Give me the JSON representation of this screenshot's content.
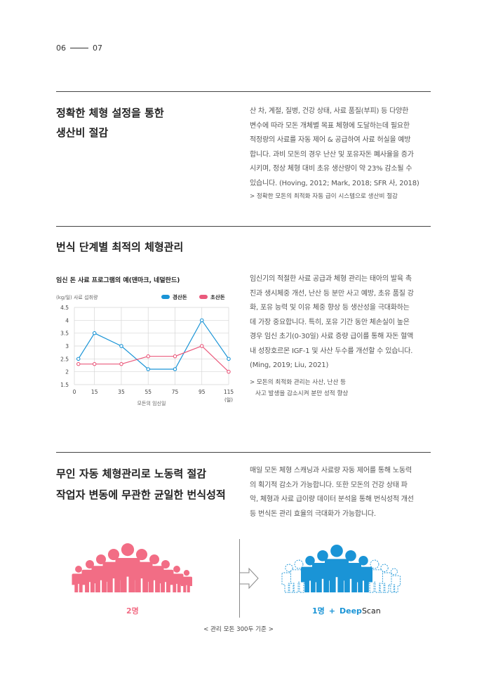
{
  "page": {
    "left_num": "06",
    "right_num": "07"
  },
  "section1": {
    "heading_line1": "정확한 체형 설정을 통한",
    "heading_line2": "생산비 절감",
    "para_lines": [
      "산 차, 계절, 질병, 건강 상태, 사료 품질(부피) 등 다양한",
      "변수에 따라 모돈 개체별 목표 체형에 도달하는데 필요한",
      "적정량의 사료를 자동 제어 & 공급하여 사료 허실을 예방",
      "합니다. 과비 모돈의 경우 난산 및 포유자돈 폐사율을 증가",
      "시키며, 정상 체형 대비 초유 생산량이 약 23% 감소될 수",
      "있습니다. (Hoving, 2012; Mark, 2018; SFR 사, 2018)"
    ],
    "note": "> 정확한 모돈의 최적화 자동 급이 시스템으로 생산비 절감"
  },
  "section2": {
    "heading": "번식 단계별 최적의 체형관리",
    "para_lines": [
      "임신기의 적절한 사료 공급과 체형 관리는 태아의 발육 촉",
      "진과 생시체중 개선, 난산 등 분만 사고 예방, 초유 품질 강",
      "화, 포유 능력 및 이유 체중 향상 등 생산성을 극대화하는",
      "데 가장 중요합니다. 특히, 포유 기간 동안 체손실이 높은",
      "경우 임신 초기(0-30일) 사료 증량 급이를 통해 자돈 혈액",
      "내 성장호르몬 IGF-1 및 사산 두수를 개선할 수 있습니다.",
      "(Ming, 2019; Liu, 2021)"
    ],
    "note_line1": "> 모돈의 최적화 관리는 사산, 난산 등",
    "note_line2": "사고 발생을 감소시켜 분만 성적 향상"
  },
  "chart_data": {
    "type": "line",
    "title": "임신 돈 사료 프로그램의 예(덴마크, 네덜란드)",
    "ylabel": "(kg/일)  사료 섭취량",
    "xlabel": "모돈의 임신일",
    "x_unit": "(일)",
    "categories": [
      "0",
      "15",
      "35",
      "55",
      "75",
      "95",
      "115"
    ],
    "y_ticks": [
      "4.5",
      "4",
      "3.5",
      "3",
      "2.5",
      "2",
      "1.5"
    ],
    "ylim": [
      1.5,
      4.5
    ],
    "grid": true,
    "legend_position": "top-right",
    "series": [
      {
        "name": "경산돈",
        "color": "#1a94d6",
        "x": [
          3,
          15,
          35,
          55,
          75,
          95,
          115
        ],
        "values": [
          2.5,
          3.5,
          3.0,
          2.1,
          2.1,
          4.0,
          2.5
        ]
      },
      {
        "name": "초산돈",
        "color": "#ea5a7c",
        "x": [
          3,
          15,
          35,
          55,
          75,
          95,
          115
        ],
        "values": [
          2.3,
          2.3,
          2.3,
          2.6,
          2.6,
          3.0,
          2.0
        ]
      }
    ]
  },
  "section3": {
    "heading_line1": "무인 자동 체형관리로 노동력 절감",
    "heading_line2": "작업자 변동에 무관한 균일한 번식성적",
    "para_lines": [
      "매일 모돈 체형 스캐닝과 사료량 자동 제어를 통해 노동력",
      "의 획기적 감소가 가능합니다. 또한 모돈의 건강 상태 파",
      "악, 체형과 사료 급이량 데이터 분석을 통해 번식성적 개선",
      "등 번식돈 관리 효율의 극대화가 가능합니다."
    ]
  },
  "infographic": {
    "left_label": "2명",
    "right_count": "1명",
    "plus": "+",
    "brand_part1": "Deep",
    "brand_part2": "Scan",
    "caption": "< 관리 모돈 300두 기준 >",
    "colors": {
      "left": "#f26d85",
      "right": "#1a94d6"
    }
  }
}
